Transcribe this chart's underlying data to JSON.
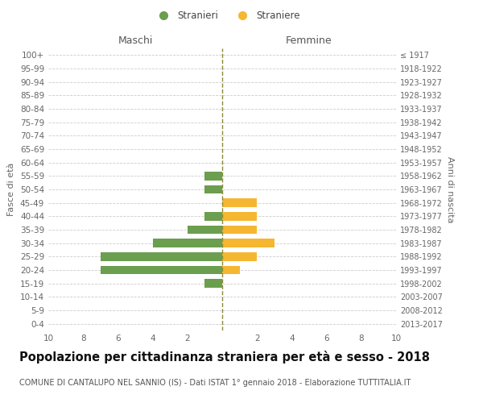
{
  "age_groups": [
    "0-4",
    "5-9",
    "10-14",
    "15-19",
    "20-24",
    "25-29",
    "30-34",
    "35-39",
    "40-44",
    "45-49",
    "50-54",
    "55-59",
    "60-64",
    "65-69",
    "70-74",
    "75-79",
    "80-84",
    "85-89",
    "90-94",
    "95-99",
    "100+"
  ],
  "birth_years": [
    "2013-2017",
    "2008-2012",
    "2003-2007",
    "1998-2002",
    "1993-1997",
    "1988-1992",
    "1983-1987",
    "1978-1982",
    "1973-1977",
    "1968-1972",
    "1963-1967",
    "1958-1962",
    "1953-1957",
    "1948-1952",
    "1943-1947",
    "1938-1942",
    "1933-1937",
    "1928-1932",
    "1923-1927",
    "1918-1922",
    "≤ 1917"
  ],
  "maschi": [
    0,
    0,
    0,
    1,
    7,
    7,
    4,
    2,
    1,
    0,
    1,
    1,
    0,
    0,
    0,
    0,
    0,
    0,
    0,
    0,
    0
  ],
  "femmine": [
    0,
    0,
    0,
    0,
    1,
    2,
    3,
    2,
    2,
    2,
    0,
    0,
    0,
    0,
    0,
    0,
    0,
    0,
    0,
    0,
    0
  ],
  "maschi_color": "#6b9e4e",
  "femmine_color": "#f5b731",
  "grid_color": "#cccccc",
  "dashed_line_color": "#8b8b3a",
  "title": "Popolazione per cittadinanza straniera per età e sesso - 2018",
  "subtitle": "COMUNE DI CANTALUPO NEL SANNIO (IS) - Dati ISTAT 1° gennaio 2018 - Elaborazione TUTTITALIA.IT",
  "xlabel_left": "Maschi",
  "xlabel_right": "Femmine",
  "ylabel_left": "Fasce di età",
  "ylabel_right": "Anni di nascita",
  "legend_maschi": "Stranieri",
  "legend_femmine": "Straniere",
  "xlim": 10,
  "background_color": "#ffffff",
  "title_fontsize": 10.5,
  "subtitle_fontsize": 7,
  "label_fontsize": 9,
  "tick_fontsize": 7.5,
  "legend_fontsize": 8.5
}
